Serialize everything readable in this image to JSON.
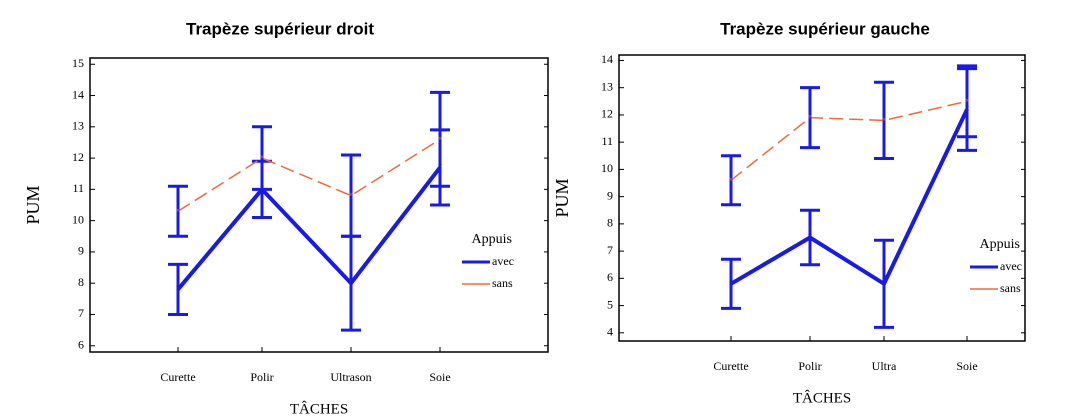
{
  "chart_data": [
    {
      "type": "line",
      "title": "Trapèze supérieur droit",
      "xlabel": "TÂCHES",
      "ylabel": "PUM",
      "legend_title": "Appuis",
      "categories": [
        "Curette",
        "Polir",
        "Ultrason",
        "Soie"
      ],
      "ylim": [
        5.8,
        15.2
      ],
      "yticks": [
        6,
        7,
        8,
        9,
        10,
        11,
        12,
        13,
        14,
        15
      ],
      "series": [
        {
          "name": "avec",
          "color": "#1a1ae6",
          "linestyle": "solid",
          "values": [
            7.8,
            11.0,
            8.0,
            11.7
          ],
          "errors": [
            0.8,
            0.9,
            1.5,
            1.2
          ]
        },
        {
          "name": "sans",
          "color": "#f06a3c",
          "linestyle": "dashed",
          "values": [
            10.3,
            12.0,
            10.8,
            12.6
          ],
          "errors": [
            0.8,
            1.0,
            1.3,
            1.5
          ]
        }
      ]
    },
    {
      "type": "line",
      "title": "Trapèze supérieur gauche",
      "xlabel": "TÂCHES",
      "ylabel": "PUM",
      "legend_title": "Appuis",
      "categories": [
        "Curette",
        "Polir",
        "Ultra",
        "Soie"
      ],
      "ylim": [
        3.7,
        14.2
      ],
      "yticks": [
        4,
        5,
        6,
        7,
        8,
        9,
        10,
        11,
        12,
        13,
        14
      ],
      "series": [
        {
          "name": "avec",
          "color": "#1a1ae6",
          "linestyle": "solid",
          "values": [
            5.8,
            7.5,
            5.8,
            12.2
          ],
          "errors": [
            0.9,
            1.0,
            1.6,
            1.5
          ]
        },
        {
          "name": "sans",
          "color": "#f06a3c",
          "linestyle": "dashed",
          "values": [
            9.6,
            11.9,
            11.8,
            12.5
          ],
          "errors": [
            0.9,
            1.1,
            1.4,
            1.3
          ]
        }
      ]
    }
  ]
}
